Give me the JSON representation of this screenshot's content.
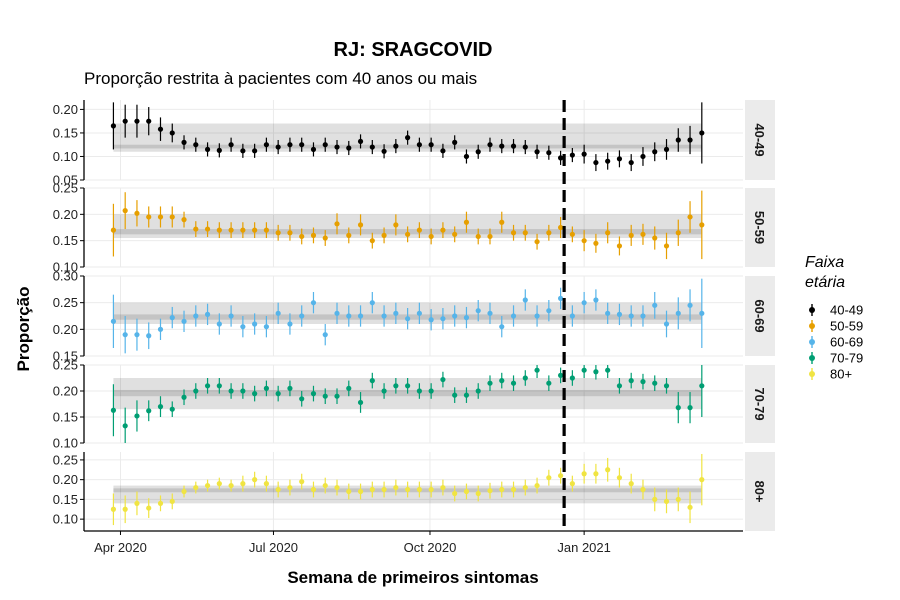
{
  "chart_data": {
    "type": "scatter",
    "title": "RJ: SRAGCOVID",
    "subtitle": "Proporção restrita à pacientes com 40 anos ou mais",
    "xlabel": "Semana de primeiros sintomas",
    "ylabel": "Proporção",
    "x_ticks": [
      "Apr 2020",
      "Jul 2020",
      "Oct 2020",
      "Jan 2021"
    ],
    "x_tick_weeks": [
      0.6,
      13.6,
      26.9,
      40.0
    ],
    "xlim": [
      -2.5,
      53.5
    ],
    "reference_week": 38.3,
    "legend": {
      "title": "Faixa etária",
      "title_line1": "Faixa",
      "title_line2": "etária",
      "position": "right"
    },
    "series": [
      {
        "name": "40-49",
        "color": "#000000",
        "ylim": [
          0.05,
          0.22
        ],
        "yticks": [
          "0.20",
          "0.15",
          "0.10",
          "0.05"
        ],
        "ytick_values": [
          0.2,
          0.15,
          0.1,
          0.05
        ],
        "band_outer": [
          0.11,
          0.17
        ],
        "band_inner": [
          0.117,
          0.125
        ],
        "values": [
          0.165,
          0.175,
          0.175,
          0.175,
          0.158,
          0.15,
          0.13,
          0.125,
          0.115,
          0.113,
          0.125,
          0.112,
          0.112,
          0.125,
          0.12,
          0.125,
          0.125,
          0.115,
          0.125,
          0.12,
          0.118,
          0.132,
          0.12,
          0.111,
          0.122,
          0.14,
          0.125,
          0.125,
          0.112,
          0.13,
          0.1,
          0.11,
          0.125,
          0.122,
          0.122,
          0.12,
          0.11,
          0.108,
          0.097,
          0.103,
          0.105,
          0.087,
          0.09,
          0.095,
          0.087,
          0.1,
          0.11,
          0.115,
          0.135,
          0.135,
          0.15
        ],
        "errors": [
          0.05,
          0.035,
          0.035,
          0.03,
          0.025,
          0.02,
          0.015,
          0.015,
          0.015,
          0.015,
          0.015,
          0.015,
          0.015,
          0.015,
          0.015,
          0.015,
          0.015,
          0.015,
          0.015,
          0.015,
          0.015,
          0.015,
          0.015,
          0.015,
          0.015,
          0.015,
          0.015,
          0.015,
          0.015,
          0.015,
          0.015,
          0.015,
          0.015,
          0.015,
          0.015,
          0.015,
          0.015,
          0.015,
          0.015,
          0.015,
          0.02,
          0.018,
          0.018,
          0.018,
          0.018,
          0.02,
          0.02,
          0.022,
          0.025,
          0.03,
          0.065
        ]
      },
      {
        "name": "50-59",
        "color": "#E69F00",
        "ylim": [
          0.1,
          0.25
        ],
        "yticks": [
          "0.25",
          "0.20",
          "0.15",
          "0.10"
        ],
        "ytick_values": [
          0.25,
          0.2,
          0.15,
          0.1
        ],
        "band_outer": [
          0.155,
          0.2
        ],
        "band_inner": [
          0.162,
          0.172
        ],
        "values": [
          0.17,
          0.207,
          0.202,
          0.195,
          0.195,
          0.195,
          0.19,
          0.172,
          0.172,
          0.17,
          0.17,
          0.17,
          0.17,
          0.17,
          0.165,
          0.165,
          0.158,
          0.16,
          0.155,
          0.182,
          0.16,
          0.18,
          0.15,
          0.16,
          0.18,
          0.162,
          0.17,
          0.158,
          0.17,
          0.162,
          0.185,
          0.158,
          0.158,
          0.185,
          0.165,
          0.165,
          0.148,
          0.165,
          0.175,
          0.162,
          0.15,
          0.145,
          0.165,
          0.14,
          0.16,
          0.162,
          0.155,
          0.14,
          0.165,
          0.195,
          0.18
        ],
        "errors": [
          0.05,
          0.035,
          0.025,
          0.02,
          0.02,
          0.02,
          0.015,
          0.015,
          0.015,
          0.015,
          0.015,
          0.015,
          0.015,
          0.015,
          0.015,
          0.015,
          0.015,
          0.015,
          0.015,
          0.02,
          0.015,
          0.02,
          0.015,
          0.015,
          0.02,
          0.015,
          0.015,
          0.015,
          0.015,
          0.015,
          0.02,
          0.015,
          0.015,
          0.02,
          0.015,
          0.015,
          0.015,
          0.015,
          0.02,
          0.015,
          0.02,
          0.018,
          0.02,
          0.018,
          0.02,
          0.02,
          0.022,
          0.025,
          0.025,
          0.03,
          0.065
        ]
      },
      {
        "name": "60-69",
        "color": "#56B4E9",
        "ylim": [
          0.15,
          0.3
        ],
        "yticks": [
          "0.30",
          "0.25",
          "0.20",
          "0.15"
        ],
        "ytick_values": [
          0.3,
          0.25,
          0.2,
          0.15
        ],
        "band_outer": [
          0.21,
          0.25
        ],
        "band_inner": [
          0.218,
          0.228
        ],
        "values": [
          0.215,
          0.19,
          0.19,
          0.188,
          0.2,
          0.222,
          0.215,
          0.225,
          0.228,
          0.21,
          0.225,
          0.205,
          0.21,
          0.205,
          0.23,
          0.21,
          0.225,
          0.25,
          0.19,
          0.23,
          0.225,
          0.225,
          0.25,
          0.225,
          0.23,
          0.22,
          0.23,
          0.218,
          0.22,
          0.225,
          0.222,
          0.235,
          0.23,
          0.205,
          0.225,
          0.255,
          0.225,
          0.235,
          0.258,
          0.225,
          0.25,
          0.255,
          0.23,
          0.228,
          0.225,
          0.225,
          0.245,
          0.21,
          0.23,
          0.245,
          0.23
        ],
        "errors": [
          0.05,
          0.035,
          0.03,
          0.025,
          0.02,
          0.02,
          0.02,
          0.02,
          0.02,
          0.02,
          0.02,
          0.02,
          0.02,
          0.02,
          0.02,
          0.02,
          0.02,
          0.02,
          0.02,
          0.02,
          0.02,
          0.02,
          0.02,
          0.02,
          0.02,
          0.02,
          0.02,
          0.02,
          0.02,
          0.02,
          0.02,
          0.02,
          0.02,
          0.02,
          0.02,
          0.02,
          0.02,
          0.02,
          0.02,
          0.02,
          0.02,
          0.02,
          0.02,
          0.02,
          0.02,
          0.02,
          0.025,
          0.025,
          0.03,
          0.03,
          0.065
        ]
      },
      {
        "name": "70-79",
        "color": "#009E73",
        "ylim": [
          0.1,
          0.25
        ],
        "yticks": [
          "0.25",
          "0.20",
          "0.15",
          "0.10"
        ],
        "ytick_values": [
          0.25,
          0.2,
          0.15,
          0.1
        ],
        "band_outer": [
          0.165,
          0.225
        ],
        "band_inner": [
          0.19,
          0.202
        ],
        "values": [
          0.163,
          0.133,
          0.152,
          0.162,
          0.17,
          0.165,
          0.188,
          0.2,
          0.21,
          0.21,
          0.2,
          0.2,
          0.195,
          0.205,
          0.195,
          0.205,
          0.185,
          0.195,
          0.19,
          0.19,
          0.205,
          0.178,
          0.22,
          0.2,
          0.21,
          0.21,
          0.2,
          0.2,
          0.222,
          0.192,
          0.192,
          0.2,
          0.215,
          0.22,
          0.215,
          0.225,
          0.24,
          0.215,
          0.23,
          0.225,
          0.24,
          0.237,
          0.24,
          0.21,
          0.22,
          0.218,
          0.215,
          0.21,
          0.168,
          0.168,
          0.21
        ],
        "errors": [
          0.05,
          0.035,
          0.03,
          0.02,
          0.02,
          0.015,
          0.015,
          0.015,
          0.015,
          0.015,
          0.015,
          0.015,
          0.015,
          0.015,
          0.015,
          0.015,
          0.015,
          0.015,
          0.015,
          0.015,
          0.015,
          0.02,
          0.015,
          0.015,
          0.015,
          0.015,
          0.015,
          0.015,
          0.015,
          0.015,
          0.015,
          0.015,
          0.015,
          0.015,
          0.015,
          0.015,
          0.015,
          0.015,
          0.015,
          0.015,
          0.015,
          0.015,
          0.015,
          0.015,
          0.015,
          0.015,
          0.015,
          0.015,
          0.03,
          0.03,
          0.06
        ]
      },
      {
        "name": "80+",
        "color": "#F0E442",
        "ylim": [
          0.07,
          0.27
        ],
        "yticks": [
          "0.25",
          "0.20",
          "0.15",
          "0.10"
        ],
        "ytick_values": [
          0.25,
          0.2,
          0.15,
          0.1
        ],
        "band_outer": [
          0.14,
          0.185
        ],
        "band_inner": [
          0.168,
          0.178
        ],
        "values": [
          0.125,
          0.125,
          0.14,
          0.128,
          0.14,
          0.145,
          0.17,
          0.18,
          0.185,
          0.19,
          0.185,
          0.19,
          0.2,
          0.19,
          0.175,
          0.18,
          0.195,
          0.175,
          0.185,
          0.18,
          0.17,
          0.17,
          0.175,
          0.175,
          0.18,
          0.175,
          0.175,
          0.175,
          0.18,
          0.165,
          0.17,
          0.165,
          0.172,
          0.175,
          0.175,
          0.18,
          0.185,
          0.205,
          0.21,
          0.19,
          0.215,
          0.215,
          0.225,
          0.205,
          0.19,
          0.175,
          0.15,
          0.145,
          0.15,
          0.13,
          0.2
        ],
        "errors": [
          0.04,
          0.035,
          0.03,
          0.025,
          0.02,
          0.02,
          0.015,
          0.015,
          0.015,
          0.015,
          0.015,
          0.02,
          0.02,
          0.02,
          0.02,
          0.02,
          0.02,
          0.02,
          0.02,
          0.02,
          0.02,
          0.02,
          0.02,
          0.02,
          0.02,
          0.02,
          0.02,
          0.02,
          0.02,
          0.02,
          0.02,
          0.02,
          0.02,
          0.02,
          0.02,
          0.02,
          0.02,
          0.02,
          0.02,
          0.02,
          0.025,
          0.025,
          0.03,
          0.025,
          0.025,
          0.025,
          0.03,
          0.03,
          0.03,
          0.04,
          0.065
        ]
      }
    ]
  }
}
